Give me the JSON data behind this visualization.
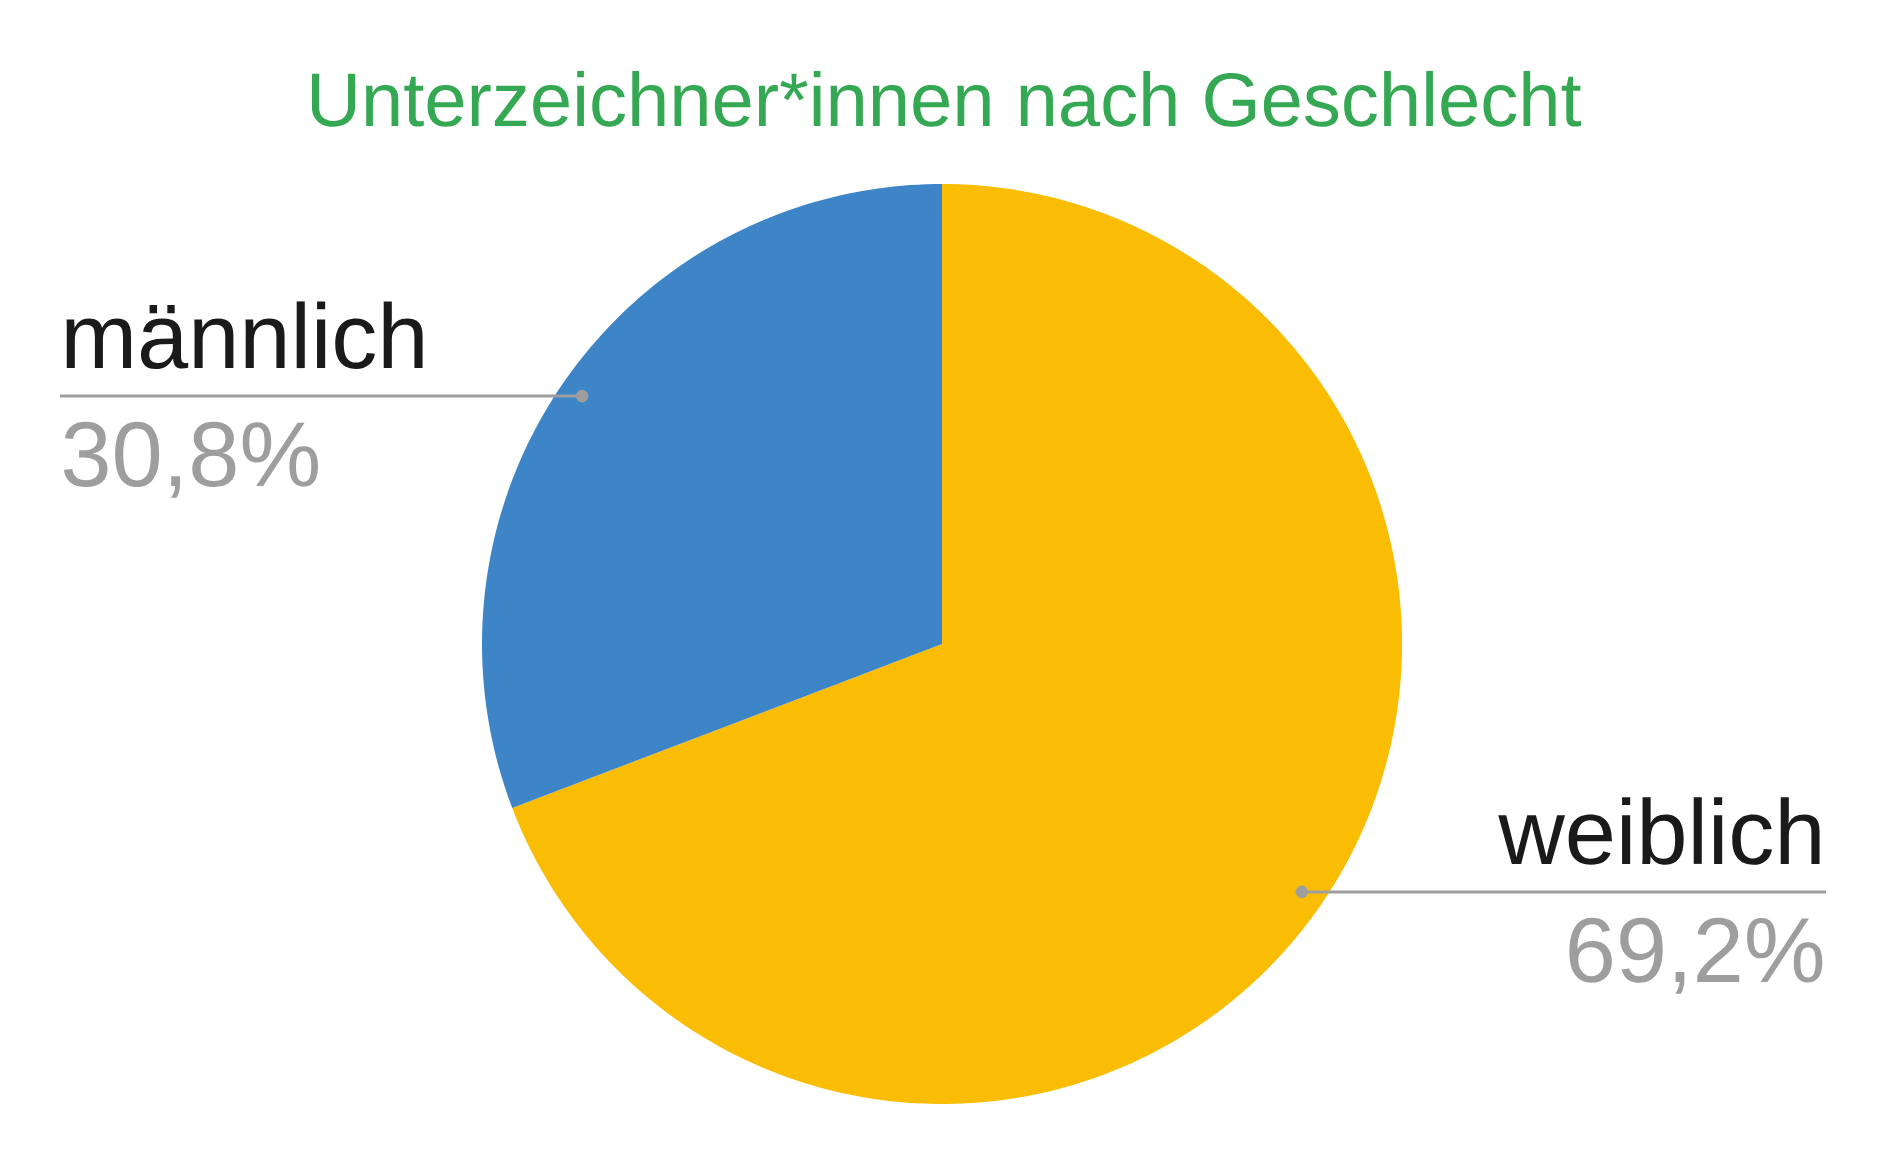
{
  "chart_data": {
    "type": "pie",
    "title": "Unterzeichner*innen nach Geschlecht",
    "categories": [
      "weiblich",
      "männlich"
    ],
    "values": [
      69.2,
      30.8
    ],
    "colors": [
      "#fbbc04",
      "#3d85c6"
    ],
    "value_labels": [
      "69,2%",
      "30,8%"
    ]
  }
}
